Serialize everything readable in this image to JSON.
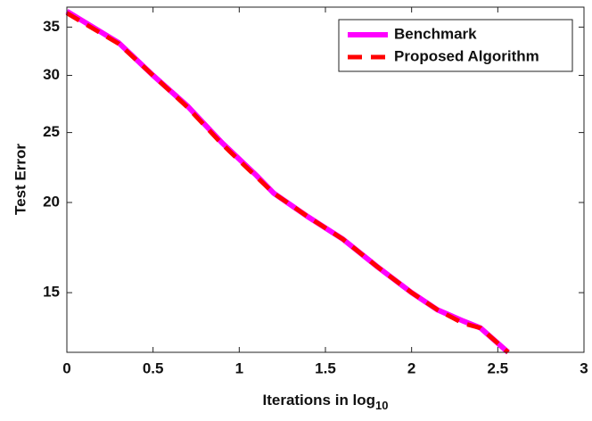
{
  "chart_data": {
    "type": "line",
    "xlabel": "Iterations in log",
    "xlabel_subscript": "10",
    "ylabel": "Test Error",
    "xlim": [
      0,
      3
    ],
    "xticks": [
      0,
      0.5,
      1,
      1.5,
      2,
      2.5,
      3
    ],
    "ylim": [
      12.4,
      37.3
    ],
    "yticks": [
      15,
      20,
      25,
      30,
      35
    ],
    "yscale": "log",
    "legend": "upper right",
    "x": [
      0,
      0.3,
      0.5,
      0.7,
      0.9,
      1.1,
      1.2,
      1.4,
      1.6,
      1.8,
      2.0,
      2.15,
      2.3,
      2.4,
      2.56
    ],
    "series": [
      {
        "name": "Benchmark",
        "color": "#ff00ff",
        "width": 6,
        "dash": "none",
        "values": [
          36.8,
          33.3,
          30.0,
          27.2,
          24.2,
          21.8,
          20.6,
          19.1,
          17.8,
          16.3,
          15.0,
          14.2,
          13.7,
          13.4,
          12.4
        ]
      },
      {
        "name": "Proposed Algorithm",
        "color": "#ff0000",
        "width": 5,
        "dash": "16,10",
        "values": [
          36.6,
          33.2,
          30.0,
          27.1,
          24.1,
          21.7,
          20.6,
          19.1,
          17.8,
          16.3,
          15.0,
          14.2,
          13.6,
          13.4,
          12.4
        ]
      }
    ]
  }
}
